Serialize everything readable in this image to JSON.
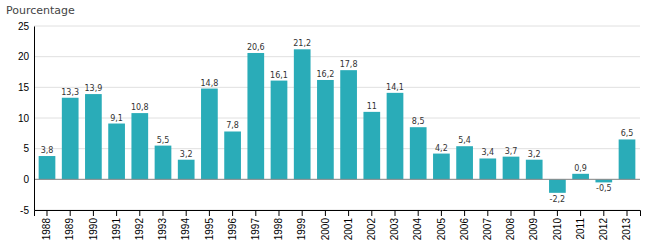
{
  "chart_data": {
    "type": "bar",
    "ylabel": "Pourcentage",
    "categories": [
      "1988",
      "1989",
      "1990",
      "1991",
      "1992",
      "1993",
      "1994",
      "1995",
      "1996",
      "1997",
      "1998",
      "1999",
      "2000",
      "2001",
      "2002",
      "2003",
      "2004",
      "2005",
      "2006",
      "2007",
      "2008",
      "2009",
      "2010",
      "2011",
      "2012",
      "2013"
    ],
    "values": [
      3.8,
      13.3,
      13.9,
      9.1,
      10.8,
      5.5,
      3.2,
      14.8,
      7.8,
      20.6,
      16.1,
      21.2,
      16.2,
      17.8,
      11.0,
      14.1,
      8.5,
      4.2,
      5.4,
      3.4,
      3.7,
      3.2,
      -2.2,
      0.9,
      -0.5,
      6.5
    ],
    "value_labels": [
      "3,8",
      "13,3",
      "13,9",
      "9,1",
      "10,8",
      "5,5",
      "3,2",
      "14,8",
      "7,8",
      "20,6",
      "16,1",
      "21,2",
      "16,2",
      "17,8",
      "11",
      "14,1",
      "8,5",
      "4,2",
      "5,4",
      "3,4",
      "3,7",
      "3,2",
      "-2,2",
      "0,9",
      "-0,5",
      "6,5"
    ],
    "color": "#2AACB8",
    "ylim": [
      -5,
      25
    ],
    "yticks": [
      -5,
      0,
      5,
      10,
      15,
      20,
      25
    ],
    "grid": true,
    "data_labels": true
  }
}
